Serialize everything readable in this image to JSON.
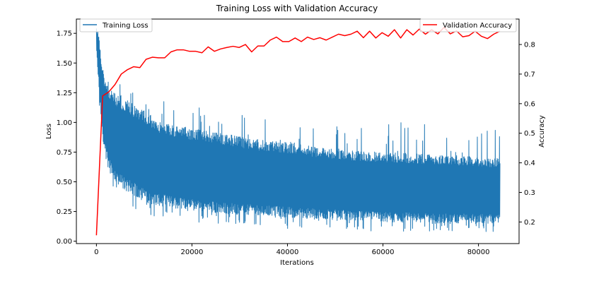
{
  "chart_data": {
    "type": "line",
    "title": "Training Loss with Validation Accuracy",
    "xlabel": "Iterations",
    "ylabel_left": "Loss",
    "ylabel_right": "Accuracy",
    "xlim": [
      -4200,
      88500
    ],
    "ylim_left": [
      -0.02,
      1.87
    ],
    "ylim_right": [
      0.127,
      0.886
    ],
    "x_ticks": [
      0,
      20000,
      40000,
      60000,
      80000
    ],
    "x_tick_labels": [
      "0",
      "20000",
      "40000",
      "60000",
      "80000"
    ],
    "y_left_ticks": [
      0.0,
      0.25,
      0.5,
      0.75,
      1.0,
      1.25,
      1.5,
      1.75
    ],
    "y_left_tick_labels": [
      "0.00",
      "0.25",
      "0.50",
      "0.75",
      "1.00",
      "1.25",
      "1.50",
      "1.75"
    ],
    "y_right_ticks": [
      0.2,
      0.3,
      0.4,
      0.5,
      0.6,
      0.7,
      0.8
    ],
    "y_right_tick_labels": [
      "0.2",
      "0.3",
      "0.4",
      "0.5",
      "0.6",
      "0.7",
      "0.8"
    ],
    "grid": false,
    "series": [
      {
        "name": "Training Loss",
        "axis": "left",
        "color": "#1f77b4",
        "style": "noisy-band",
        "x_range": [
          0,
          84500
        ],
        "points": 84,
        "envelope": {
          "x": [
            0,
            500,
            1000,
            1500,
            2500,
            4000,
            6000,
            8000,
            10000,
            13000,
            16000,
            20000,
            25000,
            30000,
            35000,
            40000,
            45000,
            50000,
            55000,
            60000,
            65000,
            70000,
            75000,
            80000,
            84500
          ],
          "low": [
            1.6,
            1.3,
            1.0,
            0.8,
            0.6,
            0.5,
            0.42,
            0.38,
            0.33,
            0.3,
            0.28,
            0.26,
            0.24,
            0.22,
            0.21,
            0.2,
            0.19,
            0.18,
            0.17,
            0.16,
            0.16,
            0.15,
            0.15,
            0.15,
            0.15
          ],
          "high": [
            1.8,
            1.75,
            1.55,
            1.4,
            1.3,
            1.25,
            1.2,
            1.15,
            1.1,
            1.02,
            0.98,
            0.95,
            0.92,
            0.88,
            0.85,
            0.83,
            0.8,
            0.78,
            0.76,
            0.75,
            0.74,
            0.73,
            0.72,
            0.71,
            0.7
          ],
          "spike_max": [
            1.8,
            1.75,
            1.6,
            1.55,
            1.45,
            1.4,
            1.35,
            1.3,
            1.25,
            1.2,
            1.17,
            1.15,
            1.12,
            1.1,
            1.08,
            1.05,
            1.03,
            1.02,
            1.02,
            1.02,
            1.02,
            1.02,
            1.0,
            1.0,
            0.95
          ],
          "dip_min": [
            1.5,
            1.1,
            0.9,
            0.6,
            0.5,
            0.35,
            0.3,
            0.25,
            0.2,
            0.2,
            0.18,
            0.16,
            0.15,
            0.13,
            0.12,
            0.1,
            0.1,
            0.09,
            0.09,
            0.08,
            0.08,
            0.08,
            0.08,
            0.08,
            0.08
          ]
        }
      },
      {
        "name": "Validation Accuracy",
        "axis": "right",
        "color": "#ff0000",
        "x": [
          0,
          1300,
          2600,
          3900,
          5200,
          6500,
          7800,
          9100,
          10400,
          11700,
          13000,
          14300,
          15600,
          16900,
          18200,
          19500,
          20800,
          22100,
          23400,
          24700,
          26000,
          27300,
          28600,
          29900,
          31200,
          32500,
          33800,
          35100,
          36400,
          37700,
          39000,
          40300,
          41600,
          42900,
          44200,
          45500,
          46800,
          48100,
          49400,
          50700,
          52000,
          53300,
          54600,
          55900,
          57200,
          58500,
          59800,
          61100,
          62400,
          63700,
          65000,
          66300,
          67600,
          68900,
          70200,
          71500,
          72800,
          74100,
          75400,
          76700,
          78000,
          79300,
          80600,
          81900,
          83200,
          84500
        ],
        "values": [
          0.155,
          0.626,
          0.64,
          0.665,
          0.7,
          0.715,
          0.725,
          0.722,
          0.75,
          0.757,
          0.755,
          0.755,
          0.775,
          0.782,
          0.782,
          0.777,
          0.777,
          0.772,
          0.792,
          0.777,
          0.785,
          0.79,
          0.794,
          0.79,
          0.8,
          0.775,
          0.795,
          0.795,
          0.815,
          0.825,
          0.81,
          0.81,
          0.822,
          0.81,
          0.825,
          0.817,
          0.823,
          0.815,
          0.825,
          0.835,
          0.83,
          0.835,
          0.845,
          0.823,
          0.845,
          0.822,
          0.84,
          0.828,
          0.85,
          0.822,
          0.85,
          0.832,
          0.852,
          0.835,
          0.85,
          0.836,
          0.858,
          0.836,
          0.846,
          0.826,
          0.83,
          0.845,
          0.828,
          0.82,
          0.835,
          0.845
        ]
      }
    ],
    "legends": [
      {
        "label": "Training Loss",
        "color": "#1f77b4",
        "position": "upper-left"
      },
      {
        "label": "Validation Accuracy",
        "color": "#ff0000",
        "position": "upper-right"
      }
    ]
  }
}
